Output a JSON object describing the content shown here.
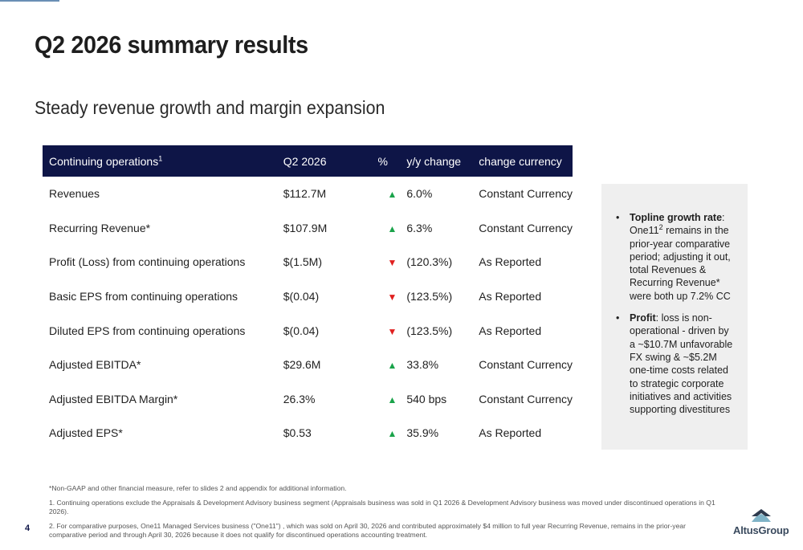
{
  "slide": {
    "title": "Q2 2026 summary results",
    "subtitle": "Steady revenue growth and margin expansion",
    "page_number": "4"
  },
  "table": {
    "headers": {
      "metric": "Continuing operations",
      "metric_footnote": "1",
      "period": "Q2 2026",
      "pct": "%",
      "change": "y/y change",
      "currency": "change currency"
    },
    "rows": [
      {
        "label": "Revenues",
        "value": "$112.7M",
        "direction": "up",
        "change": "6.0%",
        "basis": "Constant Currency"
      },
      {
        "label": "Recurring Revenue*",
        "value": "$107.9M",
        "direction": "up",
        "change": "6.3%",
        "basis": "Constant Currency"
      },
      {
        "label": "Profit (Loss) from continuing operations",
        "value": "$(1.5M)",
        "direction": "down",
        "change": "(120.3%)",
        "basis": "As Reported"
      },
      {
        "label": "Basic EPS from continuing operations",
        "value": "$(0.04)",
        "direction": "down",
        "change": "(123.5%)",
        "basis": "As Reported"
      },
      {
        "label": "Diluted EPS from continuing operations",
        "value": "$(0.04)",
        "direction": "down",
        "change": "(123.5%)",
        "basis": "As Reported"
      },
      {
        "label": "Adjusted EBITDA*",
        "value": "$29.6M",
        "direction": "up",
        "change": "33.8%",
        "basis": "Constant Currency"
      },
      {
        "label": "Adjusted EBITDA Margin*",
        "value": "26.3%",
        "direction": "up",
        "change": "540 bps",
        "basis": "Constant Currency"
      },
      {
        "label": "Adjusted EPS*",
        "value": "$0.53",
        "direction": "up",
        "change": "35.9%",
        "basis": "As Reported"
      }
    ]
  },
  "sidebar": {
    "bullets": [
      {
        "bold": "Topline growth rate",
        "pre_sup": ": One11",
        "sup": "2",
        "text": " remains in the prior-year comparative period; adjusting it out, total Revenues & Recurring Revenue* were both up 7.2% CC"
      },
      {
        "bold": "Profit",
        "pre_sup": ": loss is non-operational - driven by a ~$10.7M unfavorable FX swing & ~$5.2M one-time costs related to strategic corporate initiatives and activities supporting divestitures",
        "sup": "",
        "text": ""
      }
    ]
  },
  "footnotes": [
    "*Non-GAAP and other financial measure, refer to slides 2 and appendix for additional information.",
    "1. Continuing operations exclude the Appraisals & Development Advisory business segment (Appraisals business was sold in Q1 2026 & Development Advisory business was moved under discontinued operations in Q1 2026).",
    "2. For comparative purposes, One11 Managed Services business (\"One11\") , which was sold on April 30, 2026 and contributed approximately $4 million to full year Recurring Revenue, remains in the prior-year comparative period and through April 30, 2026 because it does not qualify for discontinued operations accounting treatment."
  ],
  "logo": {
    "text": "AltusGroup",
    "icon": "altus-mountain-icon"
  },
  "colors": {
    "header_bg": "#0e1547",
    "up": "#1aa34a",
    "down": "#e0201f",
    "sidebar_bg": "#efefef",
    "accent_line": "#6a8fb5"
  }
}
